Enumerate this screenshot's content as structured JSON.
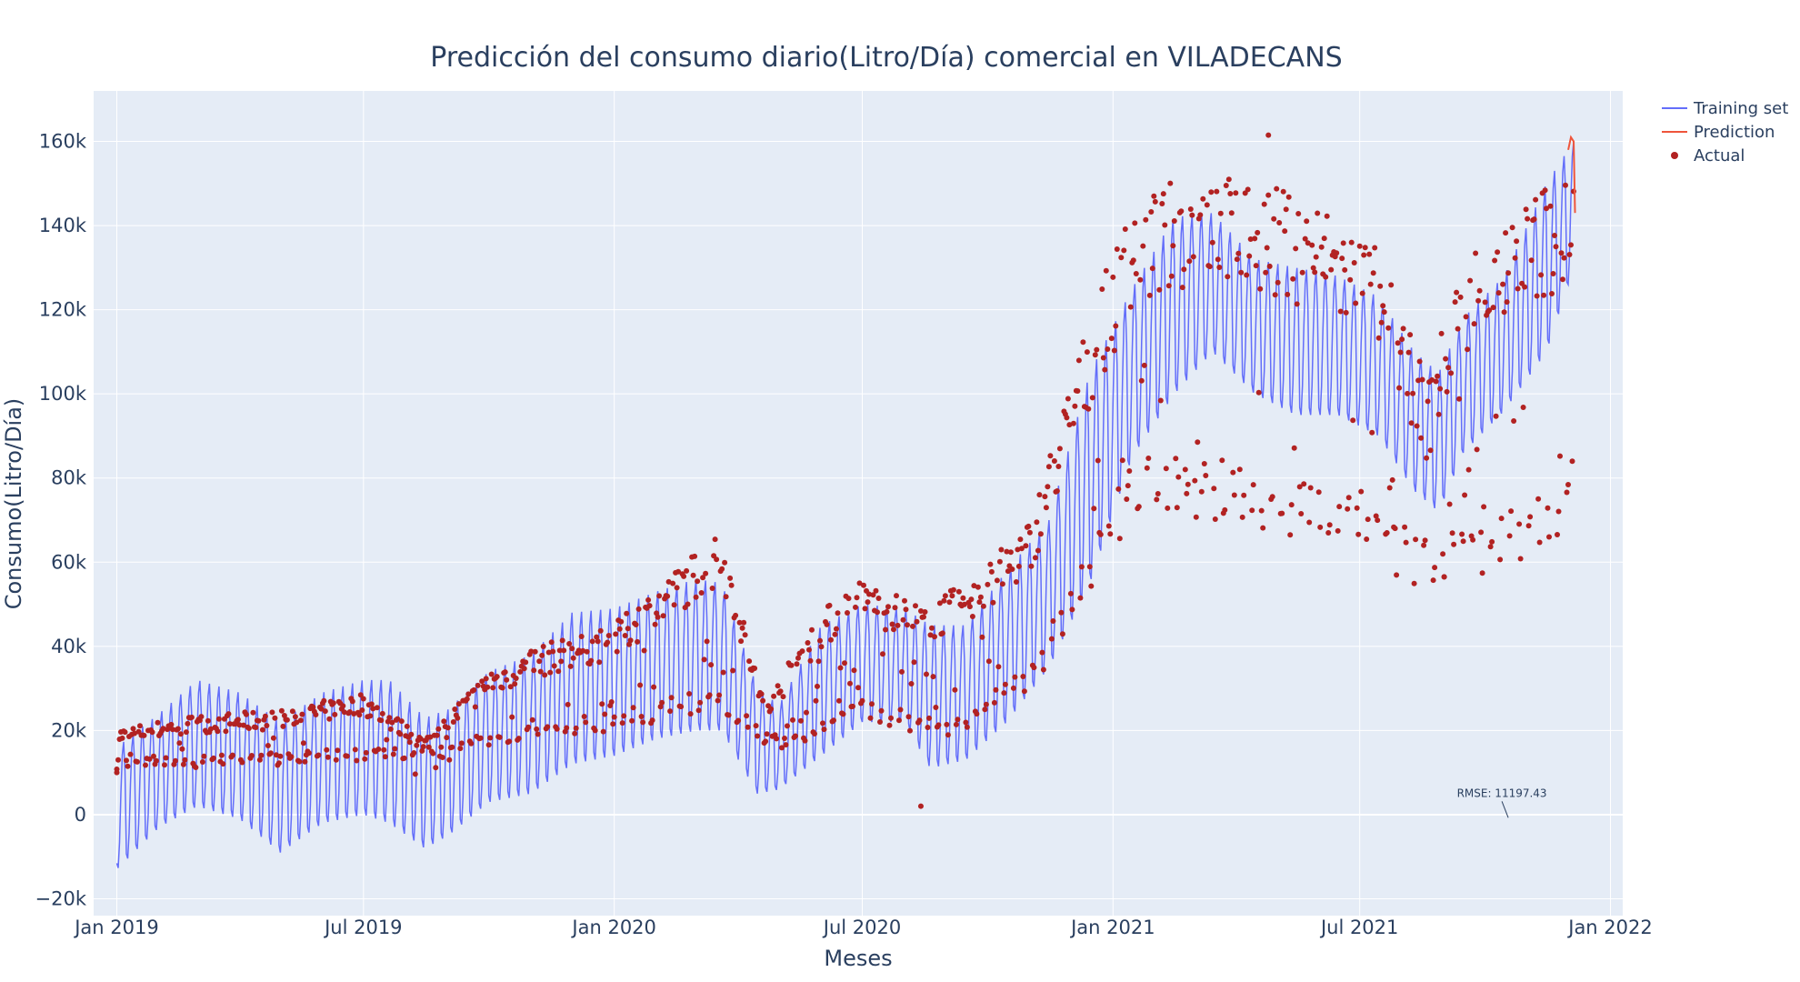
{
  "chart_data": {
    "type": "line",
    "title": "Predicción del consumo diario(Litro/Día) comercial en VILADECANS",
    "xlabel": "Meses",
    "ylabel": "Consumo(Litro/Día)",
    "x_range": [
      "2018-12-15",
      "2022-01-10"
    ],
    "ylim": [
      -24000,
      172000
    ],
    "grid": true,
    "legend_position": "top-right",
    "x_ticks": [
      {
        "date": "2019-01-01",
        "label": "Jan 2019"
      },
      {
        "date": "2019-07-01",
        "label": "Jul 2019"
      },
      {
        "date": "2020-01-01",
        "label": "Jan 2020"
      },
      {
        "date": "2020-07-01",
        "label": "Jul 2020"
      },
      {
        "date": "2021-01-01",
        "label": "Jan 2021"
      },
      {
        "date": "2021-07-01",
        "label": "Jul 2021"
      },
      {
        "date": "2022-01-01",
        "label": "Jan 2022"
      }
    ],
    "y_ticks": [
      {
        "value": -20000,
        "label": "−20k"
      },
      {
        "value": 0,
        "label": "0"
      },
      {
        "value": 20000,
        "label": "20k"
      },
      {
        "value": 40000,
        "label": "40k"
      },
      {
        "value": 60000,
        "label": "60k"
      },
      {
        "value": 80000,
        "label": "80k"
      },
      {
        "value": 100000,
        "label": "100k"
      },
      {
        "value": 120000,
        "label": "120k"
      },
      {
        "value": 140000,
        "label": "140k"
      },
      {
        "value": 160000,
        "label": "160k"
      }
    ],
    "series": [
      {
        "name": "Training set",
        "kind": "line",
        "color": "#636efa",
        "start_date": "2019-01-01",
        "end_date": "2021-12-05",
        "weekly_pattern": "high on weekdays, dips to weekly minimum",
        "weekly_envelope": [
          [
            "2019-01-01",
            16000,
            -13000
          ],
          [
            "2019-02-01",
            24000,
            -3000
          ],
          [
            "2019-03-01",
            32000,
            2000
          ],
          [
            "2019-04-01",
            29000,
            -1000
          ],
          [
            "2019-05-01",
            22000,
            -9000
          ],
          [
            "2019-06-01",
            29000,
            -2000
          ],
          [
            "2019-07-01",
            32000,
            0
          ],
          [
            "2019-07-20",
            32000,
            -2000
          ],
          [
            "2019-08-15",
            23000,
            -8000
          ],
          [
            "2019-09-01",
            25000,
            -5000
          ],
          [
            "2019-10-01",
            34000,
            3000
          ],
          [
            "2019-11-01",
            38000,
            5000
          ],
          [
            "2019-12-01",
            48000,
            12000
          ],
          [
            "2020-01-01",
            49000,
            14000
          ],
          [
            "2020-02-01",
            53000,
            18000
          ],
          [
            "2020-03-01",
            56000,
            20000
          ],
          [
            "2020-03-20",
            55000,
            20000
          ],
          [
            "2020-04-15",
            30000,
            5000
          ],
          [
            "2020-05-01",
            26000,
            6000
          ],
          [
            "2020-06-01",
            45000,
            14000
          ],
          [
            "2020-07-01",
            50000,
            22000
          ],
          [
            "2020-08-01",
            49000,
            22000
          ],
          [
            "2020-08-20",
            45000,
            11000
          ],
          [
            "2020-09-15",
            45000,
            13000
          ],
          [
            "2020-10-15",
            58000,
            22000
          ],
          [
            "2020-11-15",
            70000,
            35000
          ],
          [
            "2020-12-15",
            105000,
            55000
          ],
          [
            "2021-01-15",
            125000,
            85000
          ],
          [
            "2021-02-15",
            142000,
            100000
          ],
          [
            "2021-03-15",
            143000,
            110000
          ],
          [
            "2021-04-15",
            132000,
            100000
          ],
          [
            "2021-05-15",
            130000,
            95000
          ],
          [
            "2021-06-15",
            128000,
            95000
          ],
          [
            "2021-07-15",
            123000,
            90000
          ],
          [
            "2021-08-10",
            110000,
            77000
          ],
          [
            "2021-08-28",
            105000,
            72000
          ],
          [
            "2021-09-15",
            118000,
            86000
          ],
          [
            "2021-10-15",
            128000,
            96000
          ],
          [
            "2021-11-15",
            150000,
            110000
          ],
          [
            "2021-12-05",
            160000,
            130000
          ]
        ]
      },
      {
        "name": "Prediction",
        "kind": "line",
        "color": "#ef553b",
        "points": [
          [
            "2021-12-01",
            158000
          ],
          [
            "2021-12-03",
            161000
          ],
          [
            "2021-12-05",
            160000
          ],
          [
            "2021-12-06",
            143000
          ]
        ]
      },
      {
        "name": "Actual",
        "kind": "markers",
        "color": "#b22222",
        "weekday_band": [
          [
            "2019-01-01",
            19000
          ],
          [
            "2019-03-01",
            22000
          ],
          [
            "2019-05-01",
            23000
          ],
          [
            "2019-07-01",
            27000
          ],
          [
            "2019-08-15",
            17000
          ],
          [
            "2019-10-01",
            32000
          ],
          [
            "2019-11-15",
            38000
          ],
          [
            "2020-01-01",
            42000
          ],
          [
            "2020-03-01",
            58000
          ],
          [
            "2020-03-20",
            62000
          ],
          [
            "2020-04-20",
            25000
          ],
          [
            "2020-06-01",
            45000
          ],
          [
            "2020-07-01",
            52000
          ],
          [
            "2020-08-15",
            46000
          ],
          [
            "2020-09-20",
            52000
          ],
          [
            "2020-11-01",
            65000
          ],
          [
            "2020-12-15",
            110000
          ],
          [
            "2021-01-15",
            135000
          ],
          [
            "2021-03-01",
            142000
          ],
          [
            "2021-04-15",
            140000
          ],
          [
            "2021-06-01",
            135000
          ],
          [
            "2021-07-15",
            125000
          ],
          [
            "2021-08-20",
            95000
          ],
          [
            "2021-09-15",
            125000
          ],
          [
            "2021-10-15",
            130000
          ],
          [
            "2021-11-15",
            140000
          ],
          [
            "2021-12-05",
            140000
          ]
        ],
        "weekend_band": [
          [
            "2019-01-01",
            12000
          ],
          [
            "2019-06-01",
            14000
          ],
          [
            "2019-09-01",
            15000
          ],
          [
            "2019-11-01",
            20000
          ],
          [
            "2020-01-01",
            22000
          ],
          [
            "2020-03-15",
            28000
          ],
          [
            "2020-05-01",
            17000
          ],
          [
            "2020-07-01",
            25000
          ],
          [
            "2020-09-01",
            20000
          ],
          [
            "2020-11-01",
            32000
          ],
          [
            "2021-01-15",
            78000
          ],
          [
            "2021-04-15",
            76000
          ],
          [
            "2021-06-15",
            71000
          ],
          [
            "2021-08-15",
            60000
          ],
          [
            "2021-10-15",
            65000
          ],
          [
            "2021-12-05",
            74000
          ]
        ],
        "notable_points": [
          [
            "2020-08-13",
            2000
          ],
          [
            "2021-04-25",
            161500
          ],
          [
            "2019-01-01",
            10000
          ],
          [
            "2021-09-01",
            56500
          ]
        ]
      }
    ],
    "annotations": [
      {
        "text": "RMSE: 11197.43",
        "date": "2021-10-10",
        "value": 1000
      }
    ]
  }
}
